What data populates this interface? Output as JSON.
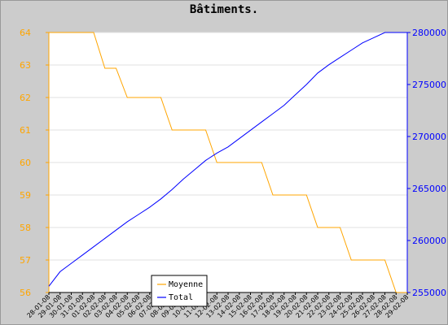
{
  "chart_data": {
    "type": "line",
    "title": "Bâtiments.",
    "background_color": "#cccccc",
    "plot_background": "#ffffff",
    "grid": true,
    "legend_position": "bottom-left",
    "x": [
      "28-01-08",
      "29-01-08",
      "30-01-08",
      "31-01-08",
      "01-02-08",
      "02-02-08",
      "03-02-08",
      "04-02-08",
      "05-02-08",
      "06-02-08",
      "07-02-08",
      "08-02-08",
      "09-02-08",
      "10-02-08",
      "11-02-08",
      "12-02-08",
      "13-02-08",
      "14-02-08",
      "15-02-08",
      "16-02-08",
      "17-02-08",
      "18-02-08",
      "19-02-08",
      "20-02-08",
      "21-02-08",
      "22-02-08",
      "23-02-08",
      "24-02-08",
      "25-02-08",
      "26-02-08",
      "27-02-08",
      "28-02-08",
      "29-02-08"
    ],
    "y_left": {
      "min": 56,
      "max": 64,
      "ticks": [
        56,
        57,
        58,
        59,
        60,
        61,
        62,
        63,
        64
      ],
      "color": "#ffa500"
    },
    "y_right": {
      "min": 255000,
      "max": 280000,
      "ticks": [
        255000,
        260000,
        265000,
        270000,
        275000,
        280000
      ],
      "color": "#0000ff"
    },
    "series": [
      {
        "name": "Moyenne",
        "axis": "left",
        "color": "#ffa500",
        "values": [
          64,
          64,
          64,
          64,
          64,
          62.9,
          62.9,
          62,
          62,
          62,
          62,
          61,
          61,
          61,
          61,
          60,
          60,
          60,
          60,
          60,
          59,
          59,
          59,
          59,
          58,
          58,
          58,
          57,
          57,
          57,
          57,
          56,
          56
        ]
      },
      {
        "name": "Total",
        "axis": "right",
        "color": "#0000ff",
        "values": [
          255600,
          257000,
          257800,
          258600,
          259400,
          260200,
          261000,
          261800,
          262500,
          263200,
          264000,
          264900,
          265900,
          266800,
          267700,
          268400,
          269000,
          269800,
          270600,
          271400,
          272200,
          273000,
          274000,
          275000,
          276100,
          276900,
          277600,
          278300,
          279000,
          279500,
          280300,
          280900,
          281500
        ]
      }
    ]
  }
}
